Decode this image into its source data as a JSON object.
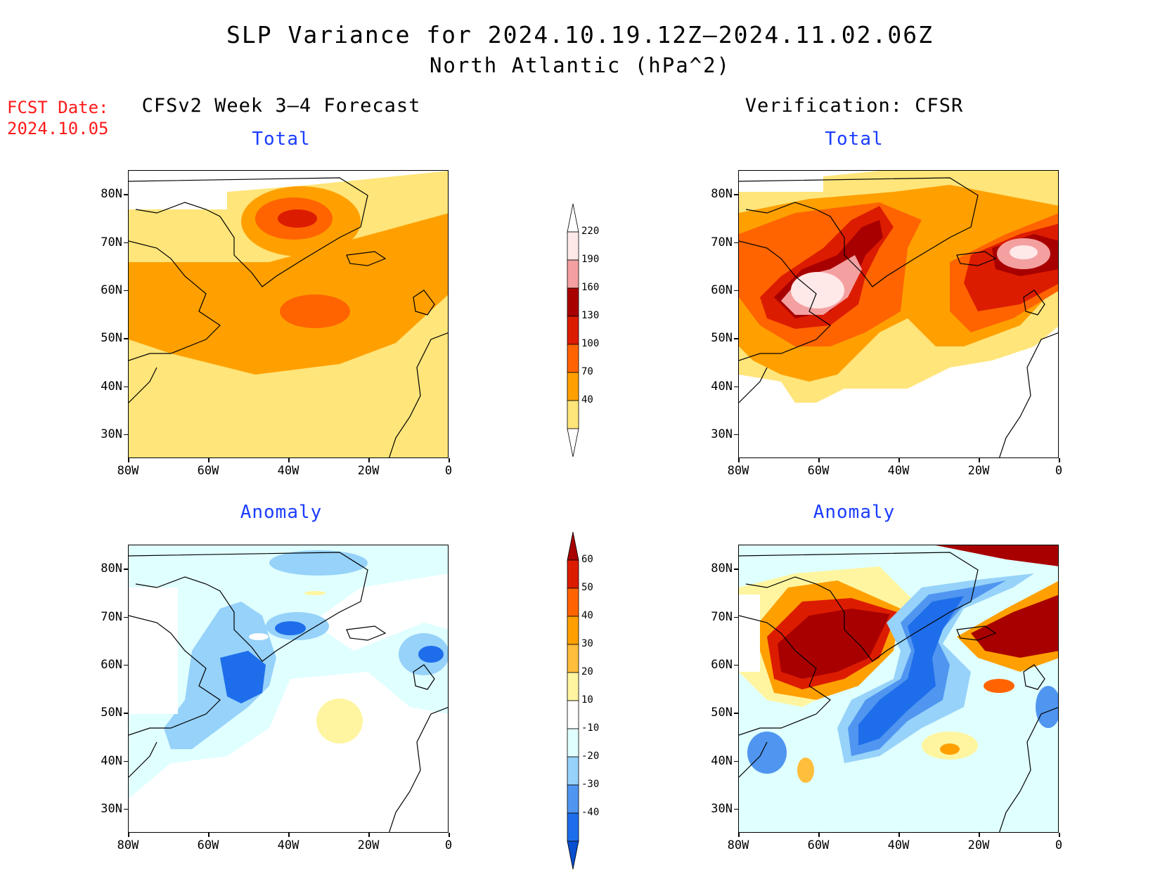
{
  "title": {
    "line1": "SLP Variance for 2024.10.19.12Z–2024.11.02.06Z",
    "line2": "North Atlantic (hPa^2)"
  },
  "fcst_date": "FCST Date:\n2024.10.05",
  "left_header": "CFSv2 Week 3–4 Forecast",
  "right_header": "Verification: CFSR",
  "panels": {
    "top_left_title": "Total",
    "top_right_title": "Total",
    "bottom_left_title": "Anomaly",
    "bottom_right_title": "Anomaly"
  },
  "axes": {
    "y_ticks": [
      "80N",
      "70N",
      "60N",
      "50N",
      "40N",
      "30N"
    ],
    "x_ticks": [
      "80W",
      "60W",
      "40W",
      "20W",
      "0"
    ],
    "lon_range": [
      -80,
      0
    ],
    "lat_range": [
      25,
      85
    ]
  },
  "colorbar_total": {
    "labels": [
      "220",
      "190",
      "160",
      "130",
      "100",
      "70",
      "40"
    ],
    "colors": [
      "#ffe8e8",
      "#f4a0a0",
      "#a80000",
      "#dc1c00",
      "#ff6400",
      "#ffa000",
      "#ffe57a"
    ]
  },
  "colorbar_anomaly": {
    "labels": [
      "60",
      "50",
      "40",
      "30",
      "20",
      "10",
      "-10",
      "-20",
      "-30",
      "-40"
    ],
    "colors": [
      "#a80000",
      "#dc1c00",
      "#ff6400",
      "#ffa000",
      "#ffbe3c",
      "#fff5a0",
      "#ffffff",
      "#e0ffff",
      "#96d2fa",
      "#5096f0",
      "#1e6eeb",
      "#0a4fd0"
    ]
  }
}
